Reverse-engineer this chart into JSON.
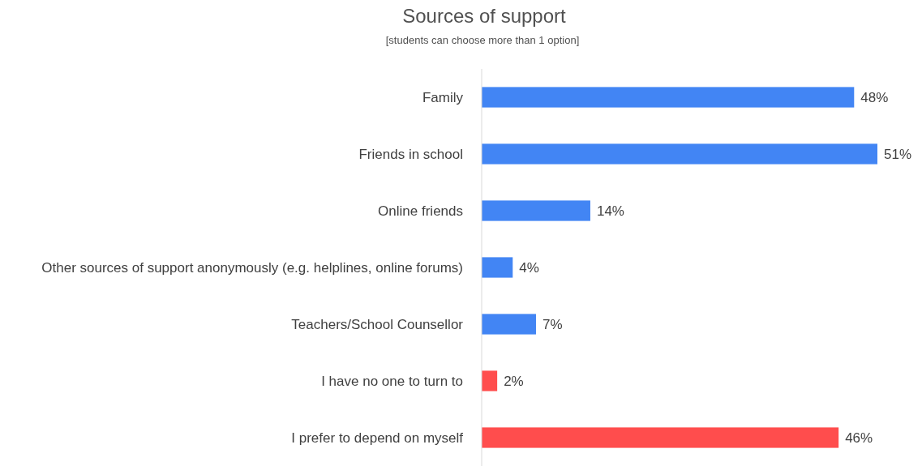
{
  "chart_data": {
    "type": "bar",
    "orientation": "horizontal",
    "title": "Sources of support",
    "subtitle": "[students can choose more than 1 option]",
    "categories": [
      "Family",
      "Friends in school",
      "Online friends",
      "Other sources of support anonymously (e.g. helplines, online forums)",
      "Teachers/School Counsellor",
      "I have no one to turn to",
      "I prefer to depend on myself"
    ],
    "values": [
      48,
      51,
      14,
      4,
      7,
      2,
      46
    ],
    "value_labels": [
      "48%",
      "51%",
      "14%",
      "4%",
      "7%",
      "2%",
      "46%"
    ],
    "colors": [
      "#4285f4",
      "#4285f4",
      "#4285f4",
      "#4285f4",
      "#4285f4",
      "#ff4d4d",
      "#ff4d4d"
    ],
    "relative": false
  }
}
